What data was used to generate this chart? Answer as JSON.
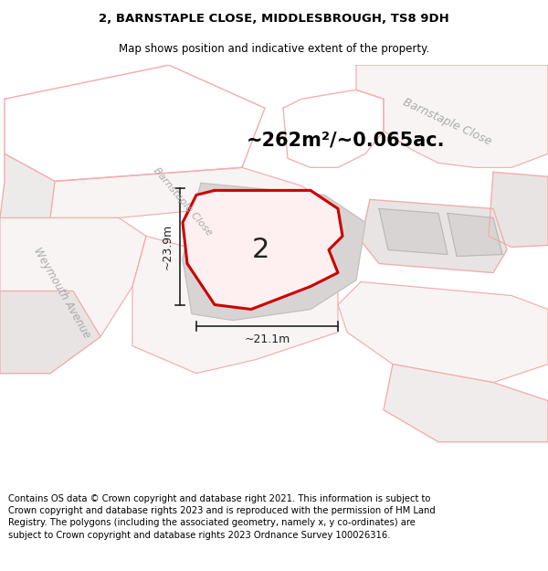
{
  "title_line1": "2, BARNSTAPLE CLOSE, MIDDLESBROUGH, TS8 9DH",
  "title_line2": "Map shows position and indicative extent of the property.",
  "area_label": "~262m²/~0.065ac.",
  "number_label": "2",
  "dim_vertical": "~23.9m",
  "dim_horizontal": "~21.1m",
  "road_label_left": "Barnstaple Close",
  "road_label_right": "Barnstaple Close",
  "road_label_bottom": "Weymouth Avenue",
  "copyright_text": "Contains OS data © Crown copyright and database right 2021. This information is subject to Crown copyright and database rights 2023 and is reproduced with the permission of HM Land Registry. The polygons (including the associated geometry, namely x, y co-ordinates) are subject to Crown copyright and database rights 2023 Ordnance Survey 100026316.",
  "bg_color": "#ffffff",
  "map_bg": "#ffffff",
  "highlight_color": "#cc0000",
  "light_pink_line": "#f5aaaa",
  "road_outline": "#f0b8b8",
  "gray_fill": "#d8d4d4",
  "gray_outline": "#c8c4c4",
  "white_fill": "#ffffff",
  "title_fontsize": 9.5,
  "subtitle_fontsize": 8.5,
  "copyright_fontsize": 7.2,
  "road_text_color": "#aaaaaa",
  "dim_color": "#222222"
}
